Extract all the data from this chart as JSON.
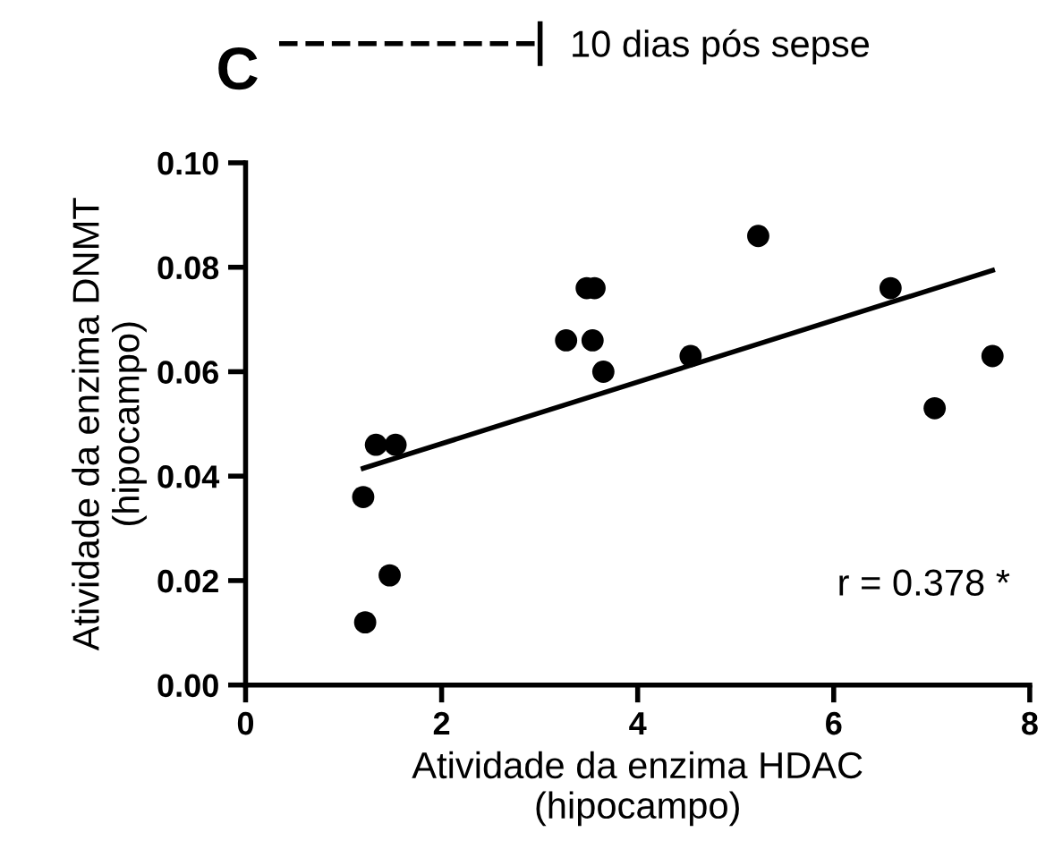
{
  "chart_data": {
    "type": "scatter",
    "xlabel": "Atividade da enzima HDAC\n(hipocampo)",
    "ylabel": "Atividade da enzima DNMT\n(hipocampo)",
    "xlim": [
      0,
      8
    ],
    "xticks": [
      0,
      2,
      4,
      6,
      8
    ],
    "ylim": [
      0,
      0.1
    ],
    "yticks": [
      {
        "value": 0,
        "label": "0.00"
      },
      {
        "value": 0.02,
        "label": "0.02"
      },
      {
        "value": 0.04,
        "label": "0.04"
      },
      {
        "value": 0.06,
        "label": "0.06"
      },
      {
        "value": 0.08,
        "label": "0.08"
      },
      {
        "value": 0.1,
        "label": "0.10"
      }
    ],
    "legend": "top",
    "grid": false,
    "marker": "circle",
    "series": [
      {
        "name": "10 dias pós sepse",
        "color": "#000000",
        "line_style": "dashed",
        "x": [
          1.2,
          1.22,
          1.47,
          1.33,
          1.53,
          3.27,
          3.48,
          3.56,
          3.54,
          3.65,
          4.54,
          5.23,
          6.58,
          7.03,
          7.62
        ],
        "values": [
          0.036,
          0.012,
          0.021,
          0.046,
          0.046,
          0.066,
          0.076,
          0.076,
          0.066,
          0.06,
          0.063,
          0.086,
          0.076,
          0.053,
          0.063
        ]
      },
      {
        "type": "line",
        "color": "#000000",
        "marker": "none",
        "line_style": "solid",
        "x": [
          1.2,
          7.62
        ],
        "values": [
          0.0415,
          0.0794
        ]
      }
    ],
    "annotations": [
      "C",
      "r = 0.378 *"
    ]
  }
}
